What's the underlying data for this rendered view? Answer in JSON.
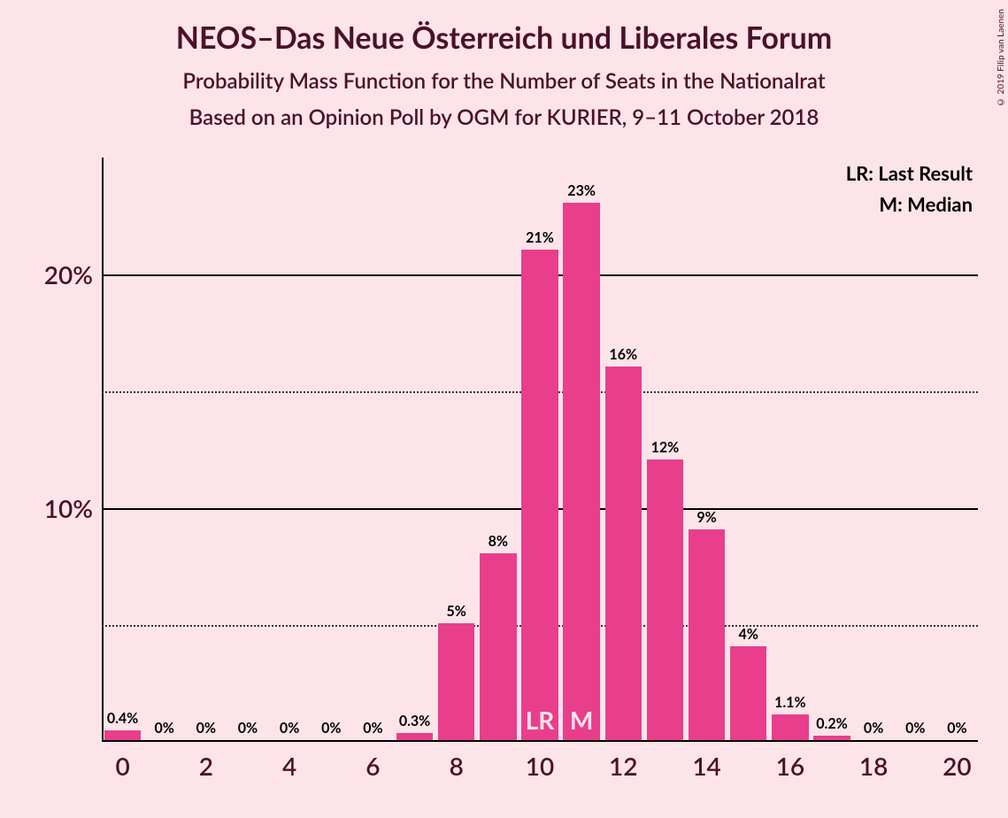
{
  "title": "NEOS–Das Neue Österreich und Liberales Forum",
  "subtitle1": "Probability Mass Function for the Number of Seats in the Nationalrat",
  "subtitle2": "Based on an Opinion Poll by OGM for KURIER, 9–11 October 2018",
  "legend": {
    "lr": "LR: Last Result",
    "m": "M: Median"
  },
  "copyright": "© 2019 Filip van Laenen",
  "chart": {
    "type": "bar",
    "background_color": "#fde4e9",
    "bar_color": "#e83e8c",
    "text_color": "#4a1228",
    "axis_color": "#000000",
    "grid_major_color": "#000000",
    "grid_minor_color": "#333333",
    "title_fontsize": 34,
    "subtitle_fontsize": 24,
    "axis_fontsize": 28,
    "barlabel_fontsize": 16,
    "ylim": [
      0,
      25
    ],
    "y_major_ticks": [
      10,
      20
    ],
    "y_minor_ticks": [
      5,
      15
    ],
    "y_tick_labels": {
      "10": "10%",
      "20": "20%"
    },
    "x_categories": [
      0,
      1,
      2,
      3,
      4,
      5,
      6,
      7,
      8,
      9,
      10,
      11,
      12,
      13,
      14,
      15,
      16,
      17,
      18,
      19,
      20
    ],
    "x_tick_labels": [
      0,
      2,
      4,
      6,
      8,
      10,
      12,
      14,
      16,
      18,
      20
    ],
    "bar_width_ratio": 0.88,
    "bars": [
      {
        "x": 0,
        "value": 0.4,
        "label": "0.4%"
      },
      {
        "x": 1,
        "value": 0,
        "label": "0%"
      },
      {
        "x": 2,
        "value": 0,
        "label": "0%"
      },
      {
        "x": 3,
        "value": 0,
        "label": "0%"
      },
      {
        "x": 4,
        "value": 0,
        "label": "0%"
      },
      {
        "x": 5,
        "value": 0,
        "label": "0%"
      },
      {
        "x": 6,
        "value": 0,
        "label": "0%"
      },
      {
        "x": 7,
        "value": 0.3,
        "label": "0.3%"
      },
      {
        "x": 8,
        "value": 5,
        "label": "5%"
      },
      {
        "x": 9,
        "value": 8,
        "label": "8%"
      },
      {
        "x": 10,
        "value": 21,
        "label": "21%",
        "inner": "LR"
      },
      {
        "x": 11,
        "value": 23,
        "label": "23%",
        "inner": "M"
      },
      {
        "x": 12,
        "value": 16,
        "label": "16%"
      },
      {
        "x": 13,
        "value": 12,
        "label": "12%"
      },
      {
        "x": 14,
        "value": 9,
        "label": "9%"
      },
      {
        "x": 15,
        "value": 4,
        "label": "4%"
      },
      {
        "x": 16,
        "value": 1.1,
        "label": "1.1%"
      },
      {
        "x": 17,
        "value": 0.2,
        "label": "0.2%"
      },
      {
        "x": 18,
        "value": 0,
        "label": "0%"
      },
      {
        "x": 19,
        "value": 0,
        "label": "0%"
      },
      {
        "x": 20,
        "value": 0,
        "label": "0%"
      }
    ]
  }
}
